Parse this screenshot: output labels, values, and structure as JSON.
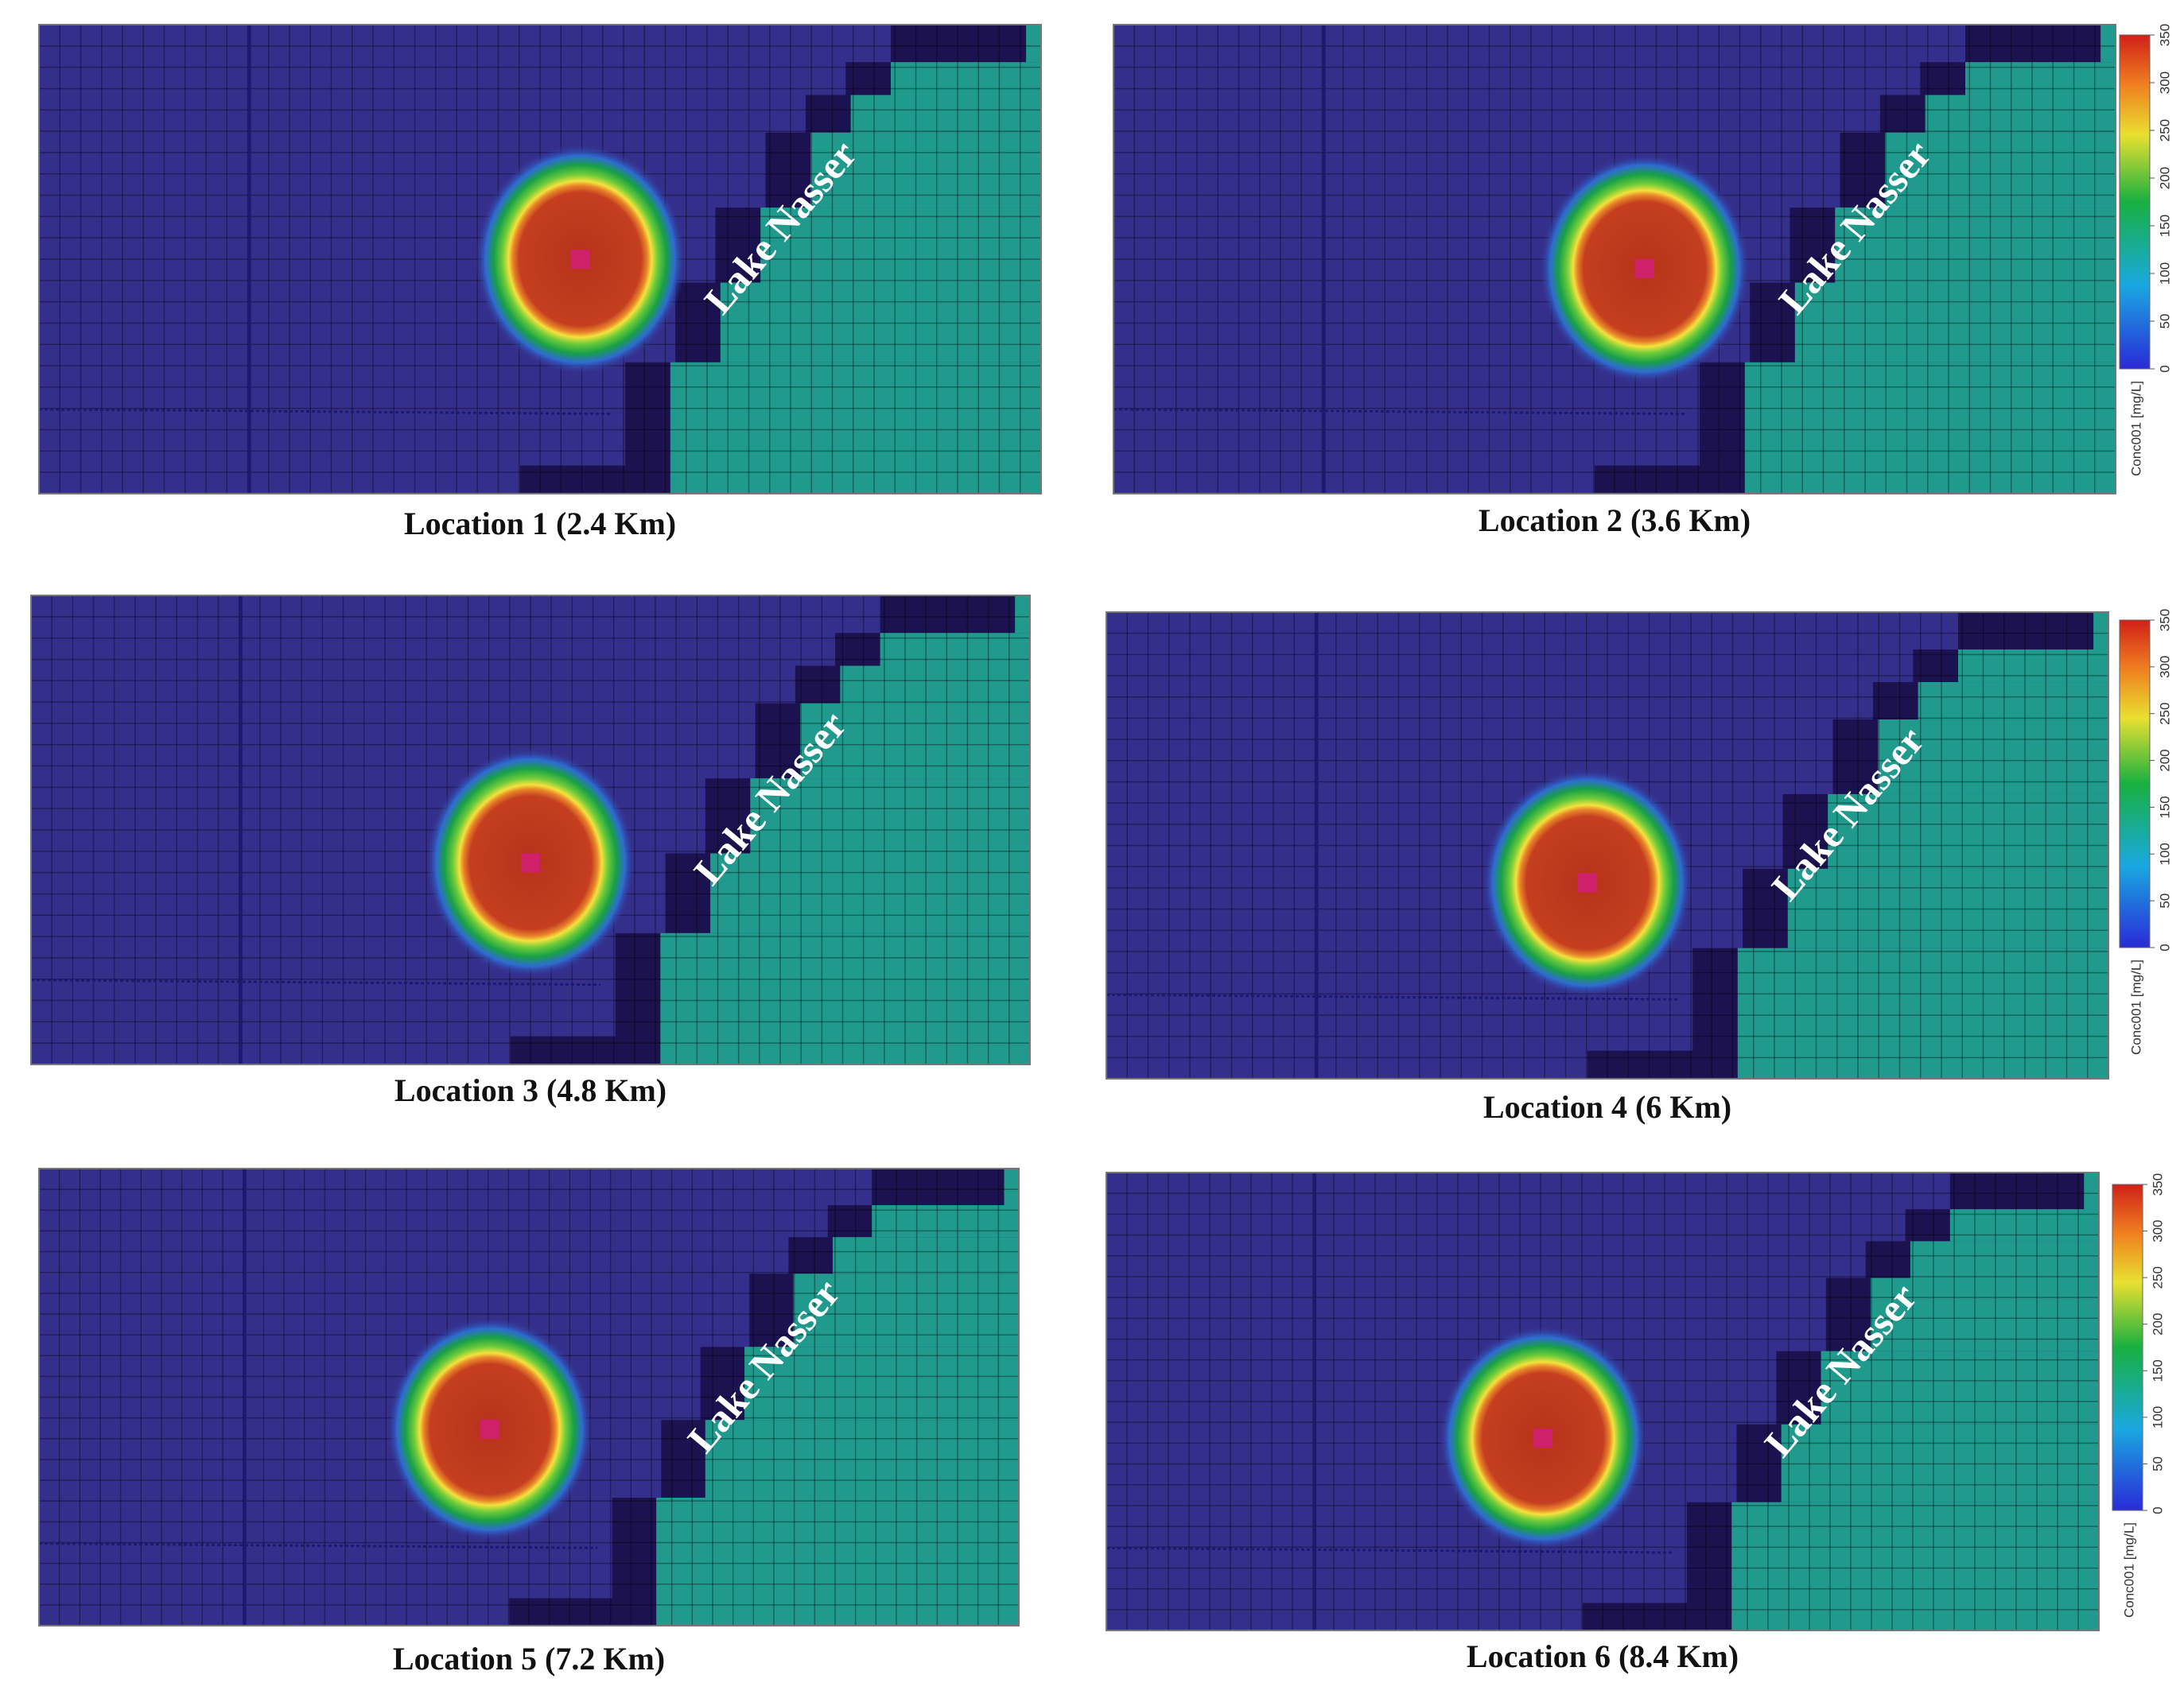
{
  "panels": [
    {
      "caption": "Location 1 (2.4 Km)",
      "label": "Lake Nasser"
    },
    {
      "caption": "Location 2 (3.6 Km)",
      "label": "Lake Nasser"
    },
    {
      "caption": "Location 3 (4.8 Km)",
      "label": "Lake Nasser"
    },
    {
      "caption": "Location 4 (6 Km)",
      "label": "Lake Nasser"
    },
    {
      "caption": "Location 5 (7.2 Km)",
      "label": "Lake Nasser"
    },
    {
      "caption": "Location 6 (8.4 Km)",
      "label": "Lake Nasser"
    }
  ],
  "colorbars": [
    {
      "ticks": [
        0,
        50,
        100,
        150,
        200,
        250,
        300,
        350
      ],
      "label": "Conc001 [mg/L]"
    },
    {
      "ticks": [
        0,
        50,
        100,
        150,
        200,
        250,
        300,
        350
      ],
      "label": "Conc001 [mg/L]"
    },
    {
      "ticks": [
        0,
        50,
        100,
        150,
        200,
        250,
        300,
        350
      ],
      "label": "Conc001 [mg/L]"
    }
  ]
}
